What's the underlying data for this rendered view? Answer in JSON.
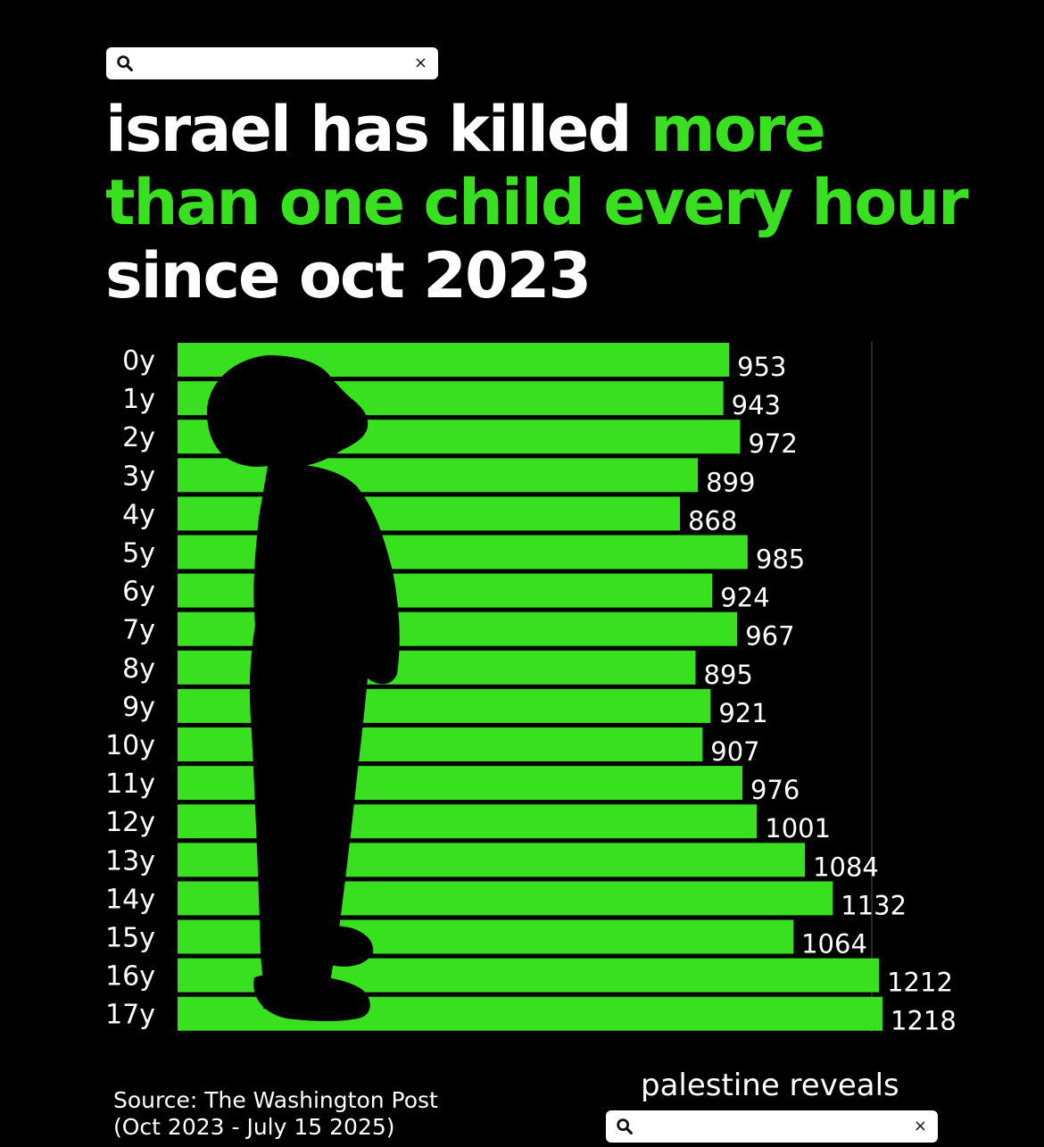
{
  "search_top": {
    "clear_icon": "×"
  },
  "headline": {
    "part1": "israel has killed ",
    "part2": "more than one child every hour",
    "part3": " since oct 2023"
  },
  "chart_data": {
    "type": "bar",
    "orientation": "horizontal",
    "categories": [
      "0y",
      "1y",
      "2y",
      "3y",
      "4y",
      "5y",
      "6y",
      "7y",
      "8y",
      "9y",
      "10y",
      "11y",
      "12y",
      "13y",
      "14y",
      "15y",
      "16y",
      "17y"
    ],
    "values": [
      953,
      943,
      972,
      899,
      868,
      985,
      924,
      967,
      895,
      921,
      907,
      976,
      1001,
      1084,
      1132,
      1064,
      1212,
      1218
    ],
    "title": "israel has killed more than one child every hour since oct 2023",
    "xlim": [
      0,
      1218
    ],
    "bar_color": "#38e01f",
    "data_labels": true,
    "grid": false,
    "legend": "none"
  },
  "footer": {
    "source_line1": "Source: The Washington Post",
    "source_line2": "(Oct 2023 - July 15 2025)",
    "brand": "palestine reveals"
  },
  "search_bottom": {
    "clear_icon": "×"
  },
  "colors": {
    "accent_green": "#38e01f",
    "background": "#000000",
    "text": "#ffffff"
  },
  "icons": [
    "search-icon",
    "close-icon",
    "child-silhouette"
  ]
}
